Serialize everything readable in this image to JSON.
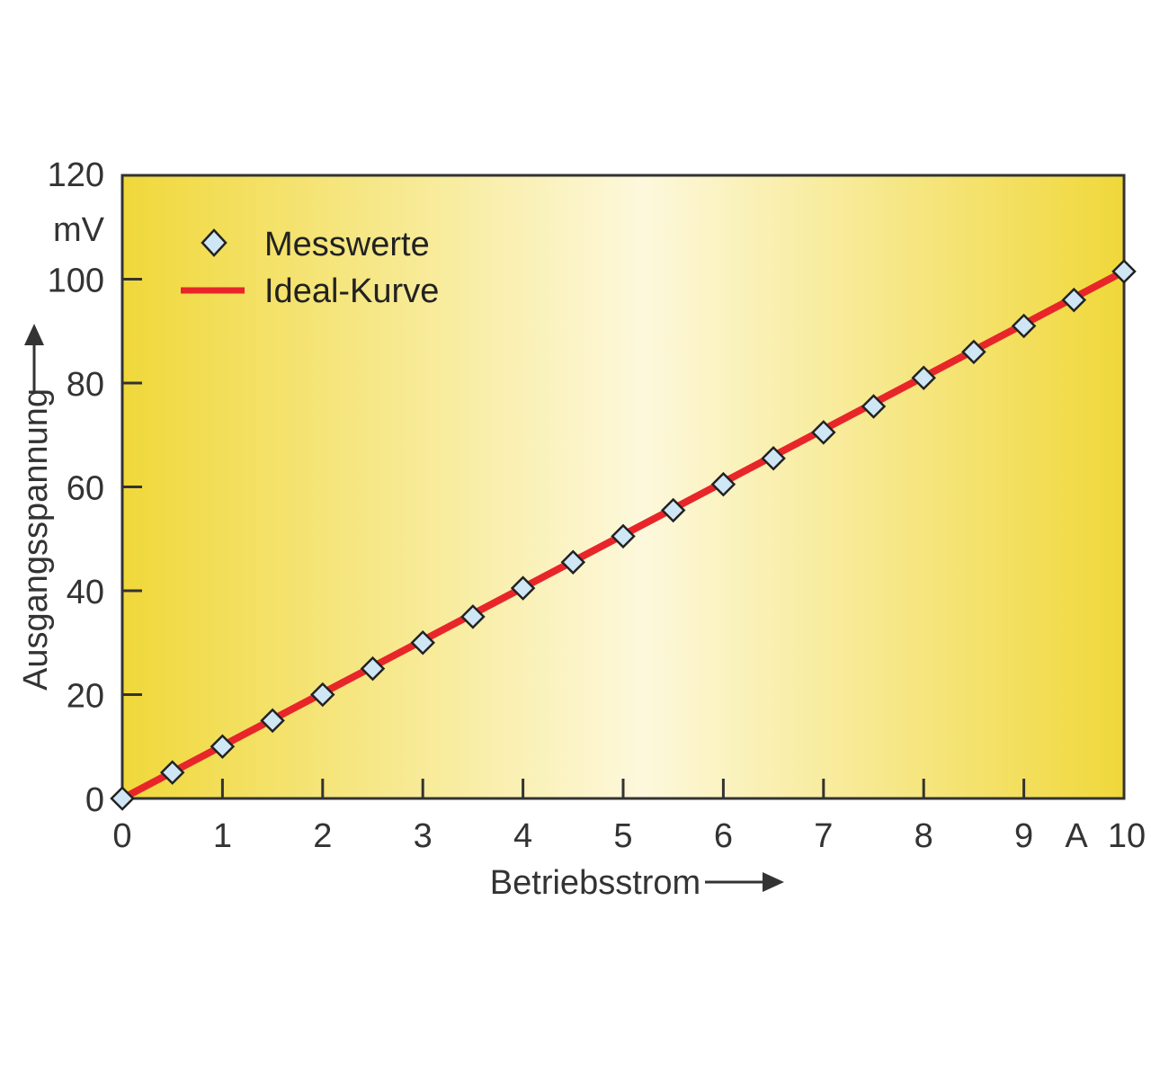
{
  "chart_data": {
    "type": "line",
    "xlabel": "Betriebsstrom",
    "ylabel": "Ausgangsspannung",
    "x_unit": "A",
    "y_unit": "mV",
    "xlim": [
      0,
      10
    ],
    "ylim": [
      0,
      120
    ],
    "x_ticks": [
      0,
      1,
      2,
      3,
      4,
      5,
      6,
      7,
      8,
      9,
      10
    ],
    "y_ticks": [
      0,
      20,
      40,
      60,
      80,
      100,
      120
    ],
    "grid": false,
    "legend_position": "top-left",
    "background_gradient": [
      "#f0d83a",
      "#fdf8dc",
      "#f0d83a"
    ],
    "series": [
      {
        "name": "Messwerte",
        "kind": "markers",
        "marker": "diamond",
        "color": "#cfe6f5",
        "x": [
          0,
          0.5,
          1,
          1.5,
          2,
          2.5,
          3,
          3.5,
          4,
          4.5,
          5,
          5.5,
          6,
          6.5,
          7,
          7.5,
          8,
          8.5,
          9,
          9.5,
          10
        ],
        "y": [
          0,
          5,
          10,
          15,
          20,
          25,
          30,
          35,
          40.5,
          45.5,
          50.5,
          55.5,
          60.5,
          65.5,
          70.5,
          75.5,
          81,
          86,
          91,
          96,
          101.5
        ]
      },
      {
        "name": "Ideal-Kurve",
        "kind": "line",
        "color": "#e8262a",
        "x": [
          0,
          10
        ],
        "y": [
          0,
          101.5
        ]
      }
    ]
  }
}
